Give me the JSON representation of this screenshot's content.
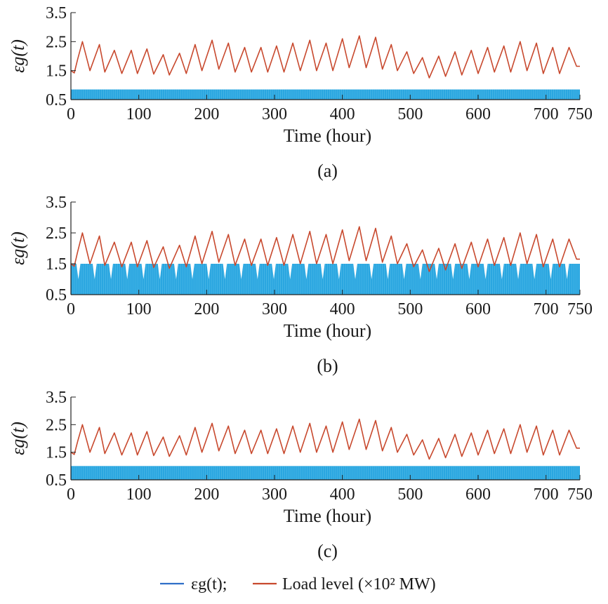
{
  "chart_data": [
    {
      "panel": "(a)",
      "type": "line",
      "xlabel": "Time (hour)",
      "ylabel": "εg(t)",
      "xlim": [
        0,
        750
      ],
      "ylim": [
        0.5,
        3.5
      ],
      "xticks": [
        0,
        100,
        200,
        300,
        400,
        500,
        600,
        700,
        750
      ],
      "yticks": [
        0.5,
        1.5,
        2.5,
        3.5
      ],
      "series": [
        {
          "name": "εg(t)",
          "color": "#2aa6e0",
          "style": "dense band",
          "min": 0.5,
          "max": 0.85
        },
        {
          "name": "Load level (×10² MW)",
          "color": "#c8492e",
          "style": "line",
          "x": [
            0,
            5,
            10,
            17,
            28,
            42,
            50,
            64,
            75,
            89,
            98,
            112,
            122,
            136,
            145,
            160,
            170,
            183,
            193,
            208,
            218,
            232,
            242,
            256,
            266,
            280,
            290,
            303,
            314,
            327,
            338,
            352,
            362,
            376,
            386,
            400,
            410,
            425,
            435,
            449,
            459,
            472,
            481,
            495,
            505,
            518,
            528,
            542,
            552,
            566,
            576,
            590,
            600,
            614,
            624,
            638,
            648,
            662,
            672,
            686,
            696,
            710,
            720,
            734,
            745,
            750
          ],
          "y": [
            1.5,
            1.42,
            1.9,
            2.5,
            1.5,
            2.4,
            1.45,
            2.2,
            1.4,
            2.2,
            1.4,
            2.25,
            1.38,
            2.05,
            1.35,
            2.1,
            1.4,
            2.4,
            1.5,
            2.55,
            1.55,
            2.45,
            1.45,
            2.3,
            1.45,
            2.3,
            1.45,
            2.35,
            1.45,
            2.45,
            1.5,
            2.55,
            1.5,
            2.45,
            1.5,
            2.6,
            1.6,
            2.7,
            1.6,
            2.65,
            1.55,
            2.4,
            1.5,
            2.15,
            1.4,
            1.95,
            1.25,
            2.0,
            1.3,
            2.15,
            1.35,
            2.2,
            1.4,
            2.3,
            1.45,
            2.35,
            1.45,
            2.5,
            1.5,
            2.45,
            1.4,
            2.3,
            1.4,
            2.3,
            1.65,
            1.65
          ]
        }
      ]
    },
    {
      "panel": "(b)",
      "type": "line",
      "xlabel": "Time (hour)",
      "ylabel": "εg(t)",
      "xlim": [
        0,
        750
      ],
      "ylim": [
        0.5,
        3.5
      ],
      "xticks": [
        0,
        100,
        200,
        300,
        400,
        500,
        600,
        700,
        750
      ],
      "yticks": [
        0.5,
        1.5,
        2.5,
        3.5
      ],
      "series": [
        {
          "name": "εg(t)",
          "color": "#2aa6e0",
          "style": "dense band with periodic notches",
          "min": 0.5,
          "max": 1.5,
          "notch_min": 1.0,
          "notch_period": 24
        },
        {
          "name": "Load level (×10² MW)",
          "color": "#c8492e",
          "style": "line",
          "x": [
            0,
            5,
            10,
            17,
            28,
            42,
            50,
            64,
            75,
            89,
            98,
            112,
            122,
            136,
            145,
            160,
            170,
            183,
            193,
            208,
            218,
            232,
            242,
            256,
            266,
            280,
            290,
            303,
            314,
            327,
            338,
            352,
            362,
            376,
            386,
            400,
            410,
            425,
            435,
            449,
            459,
            472,
            481,
            495,
            505,
            518,
            528,
            542,
            552,
            566,
            576,
            590,
            600,
            614,
            624,
            638,
            648,
            662,
            672,
            686,
            696,
            710,
            720,
            734,
            745,
            750
          ],
          "y": [
            1.5,
            1.42,
            1.9,
            2.5,
            1.5,
            2.4,
            1.45,
            2.2,
            1.4,
            2.2,
            1.4,
            2.25,
            1.38,
            2.05,
            1.35,
            2.1,
            1.4,
            2.4,
            1.5,
            2.55,
            1.55,
            2.45,
            1.45,
            2.3,
            1.45,
            2.3,
            1.45,
            2.35,
            1.45,
            2.45,
            1.5,
            2.55,
            1.5,
            2.45,
            1.5,
            2.6,
            1.6,
            2.7,
            1.6,
            2.65,
            1.55,
            2.4,
            1.5,
            2.15,
            1.4,
            1.95,
            1.25,
            2.0,
            1.3,
            2.15,
            1.35,
            2.2,
            1.4,
            2.3,
            1.45,
            2.35,
            1.45,
            2.5,
            1.5,
            2.45,
            1.4,
            2.3,
            1.4,
            2.3,
            1.65,
            1.65
          ]
        }
      ]
    },
    {
      "panel": "(c)",
      "type": "line",
      "xlabel": "Time (hour)",
      "ylabel": "εg(t)",
      "xlim": [
        0,
        750
      ],
      "ylim": [
        0.5,
        3.5
      ],
      "xticks": [
        0,
        100,
        200,
        300,
        400,
        500,
        600,
        700,
        750
      ],
      "yticks": [
        0.5,
        1.5,
        2.5,
        3.5
      ],
      "series": [
        {
          "name": "εg(t)",
          "color": "#2aa6e0",
          "style": "dense band",
          "min": 0.5,
          "max": 1.0
        },
        {
          "name": "Load level (×10² MW)",
          "color": "#c8492e",
          "style": "line",
          "x": [
            0,
            5,
            10,
            17,
            28,
            42,
            50,
            64,
            75,
            89,
            98,
            112,
            122,
            136,
            145,
            160,
            170,
            183,
            193,
            208,
            218,
            232,
            242,
            256,
            266,
            280,
            290,
            303,
            314,
            327,
            338,
            352,
            362,
            376,
            386,
            400,
            410,
            425,
            435,
            449,
            459,
            472,
            481,
            495,
            505,
            518,
            528,
            542,
            552,
            566,
            576,
            590,
            600,
            614,
            624,
            638,
            648,
            662,
            672,
            686,
            696,
            710,
            720,
            734,
            745,
            750
          ],
          "y": [
            1.5,
            1.42,
            1.9,
            2.5,
            1.5,
            2.4,
            1.45,
            2.2,
            1.4,
            2.2,
            1.4,
            2.25,
            1.38,
            2.05,
            1.35,
            2.1,
            1.4,
            2.4,
            1.5,
            2.55,
            1.55,
            2.45,
            1.45,
            2.3,
            1.45,
            2.3,
            1.45,
            2.35,
            1.45,
            2.45,
            1.5,
            2.55,
            1.5,
            2.45,
            1.5,
            2.6,
            1.6,
            2.7,
            1.6,
            2.65,
            1.55,
            2.4,
            1.5,
            2.15,
            1.4,
            1.95,
            1.25,
            2.0,
            1.3,
            2.15,
            1.35,
            2.2,
            1.4,
            2.3,
            1.45,
            2.35,
            1.45,
            2.5,
            1.5,
            2.45,
            1.4,
            2.3,
            1.4,
            2.3,
            1.65,
            1.65
          ]
        }
      ]
    }
  ],
  "legend": {
    "line_color_eps": "#2f6fc8",
    "line_color_load": "#c8492e",
    "eps_label": "εg(t);",
    "load_label": "Load level (×10² MW)"
  }
}
